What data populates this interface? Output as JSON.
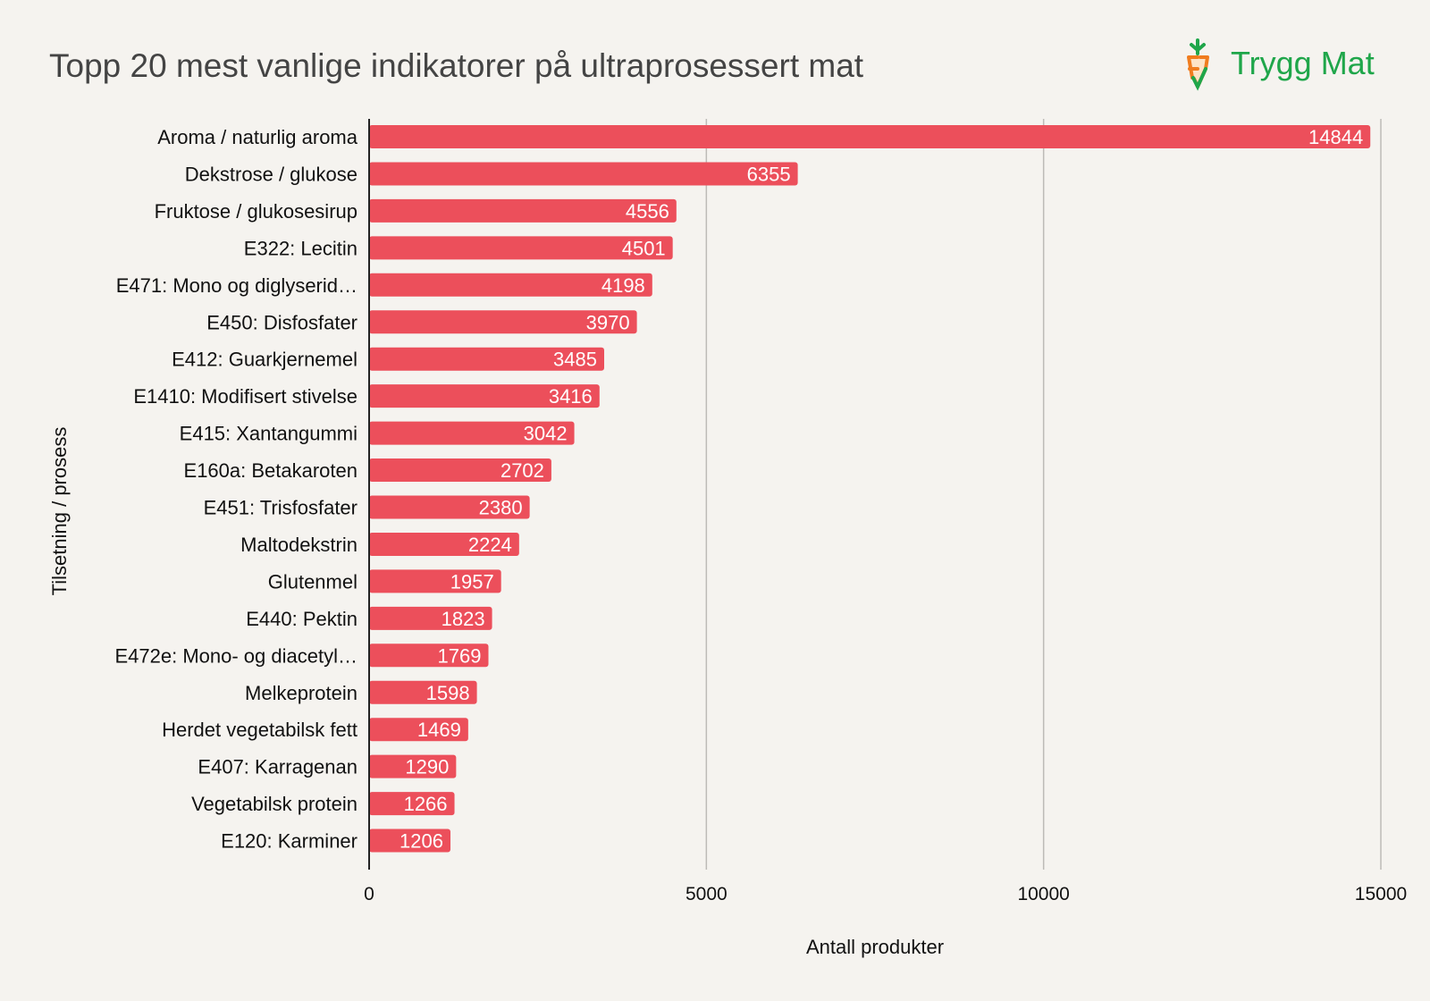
{
  "chart_data": {
    "type": "bar",
    "orientation": "horizontal",
    "title": "Topp 20 mest vanlige indikatorer på ultraprosessert mat",
    "xlabel": "Antall produkter",
    "ylabel": "Tilsetning / prosess",
    "xlim": [
      0,
      15000
    ],
    "xticks": [
      0,
      5000,
      10000,
      15000
    ],
    "grid": "vertical",
    "categories": [
      "Aroma / naturlig aroma",
      "Dekstrose / glukose",
      "Fruktose / glukosesirup",
      "E322: Lecitin",
      "E471: Mono og diglyserid…",
      "E450: Disfosfater",
      "E412: Guarkjernemel",
      "E1410: Modifisert stivelse",
      "E415: Xantangummi",
      "E160a: Betakaroten",
      "E451: Trisfosfater",
      "Maltodekstrin",
      "Glutenmel",
      "E440: Pektin",
      "E472e: Mono- og diacetyl…",
      "Melkeprotein",
      "Herdet vegetabilsk fett",
      "E407: Karragenan",
      "Vegetabilsk protein",
      "E120: Karminer"
    ],
    "values": [
      14844,
      6355,
      4556,
      4501,
      4198,
      3970,
      3485,
      3416,
      3042,
      2702,
      2380,
      2224,
      1957,
      1823,
      1769,
      1598,
      1469,
      1290,
      1266,
      1206
    ],
    "bar_color": "#ec4f5b",
    "data_labels": true
  },
  "logo": {
    "text": "Trygg Mat",
    "color": "#1fa64a",
    "icon": "carrot-icon",
    "icon_color": "#f07c1e"
  }
}
